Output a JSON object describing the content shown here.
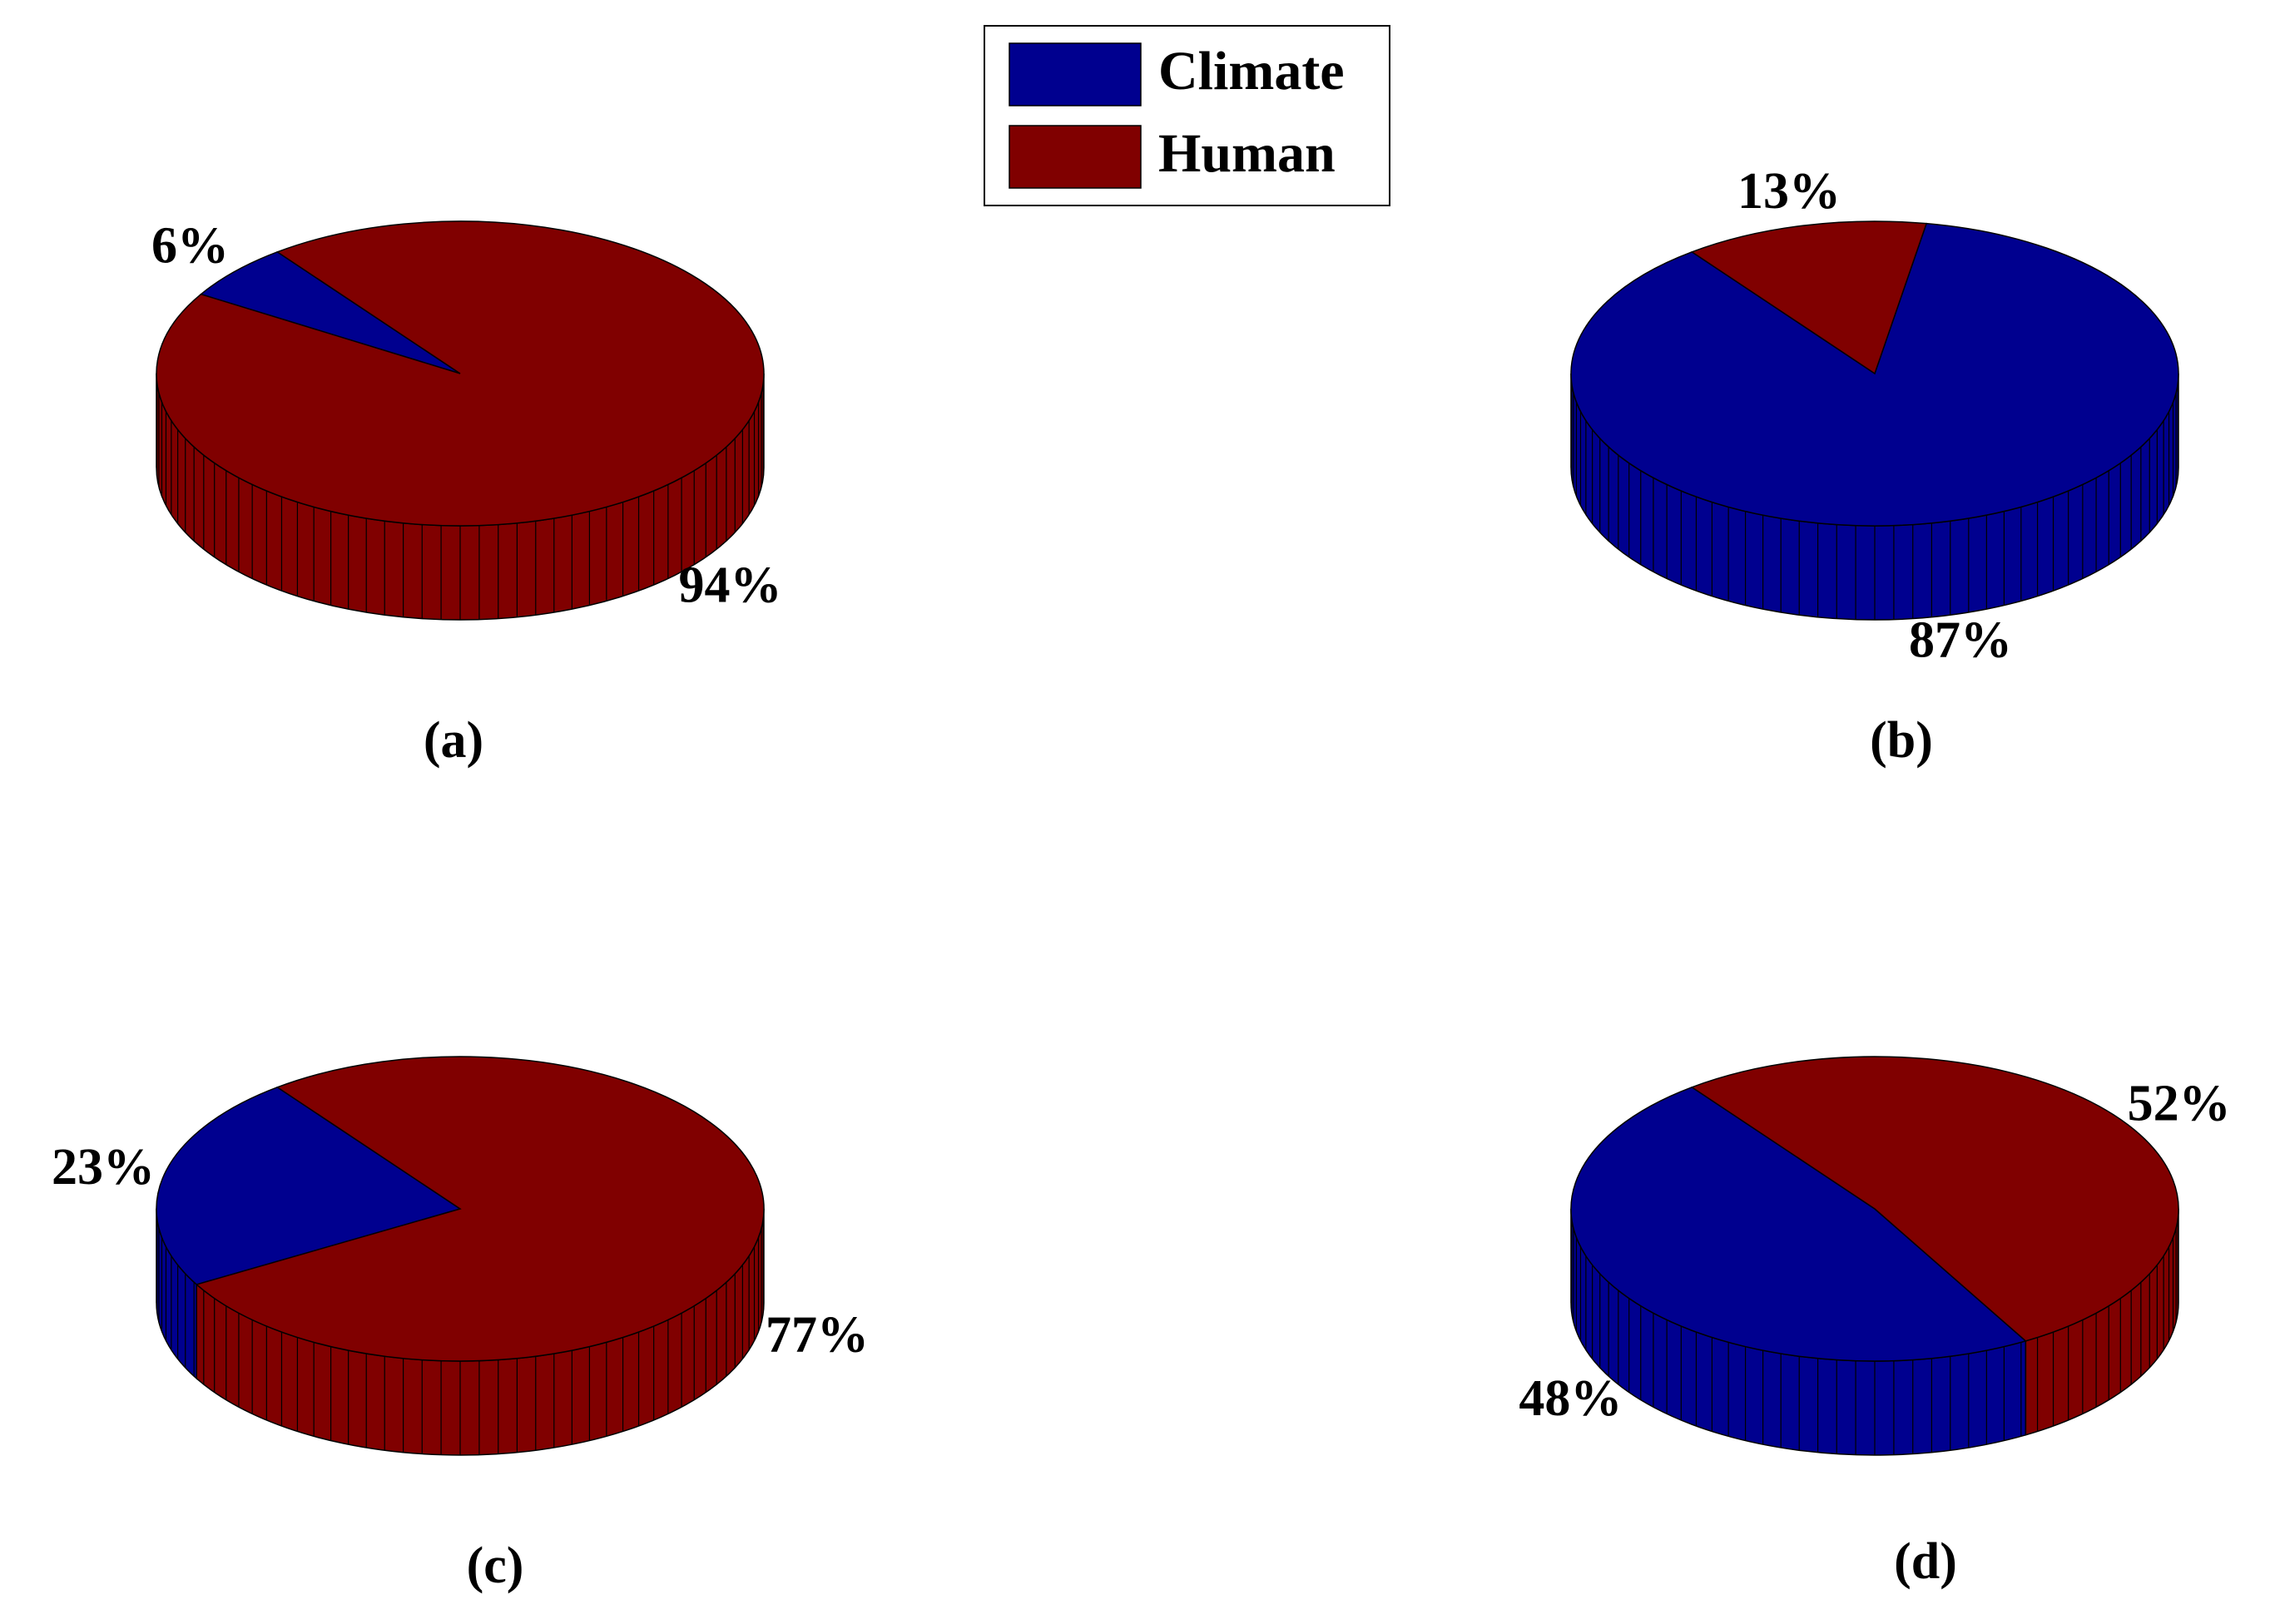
{
  "legend": {
    "entries": [
      {
        "name": "Climate",
        "color": "#00008f"
      },
      {
        "name": "Human",
        "color": "#800000"
      }
    ]
  },
  "chart_data": [
    {
      "type": "pie",
      "title": "(a)",
      "values": [
        6,
        94
      ],
      "value_labels": [
        "6%",
        "94%"
      ]
    },
    {
      "type": "pie",
      "title": "(b)",
      "values": [
        87,
        13
      ],
      "value_labels": [
        "87%",
        "13%"
      ]
    },
    {
      "type": "pie",
      "title": "(c)",
      "values": [
        23,
        77
      ],
      "value_labels": [
        "23%",
        "77%"
      ]
    },
    {
      "type": "pie",
      "title": "(d)",
      "values": [
        48,
        52
      ],
      "value_labels": [
        "48%",
        "52%"
      ]
    }
  ]
}
